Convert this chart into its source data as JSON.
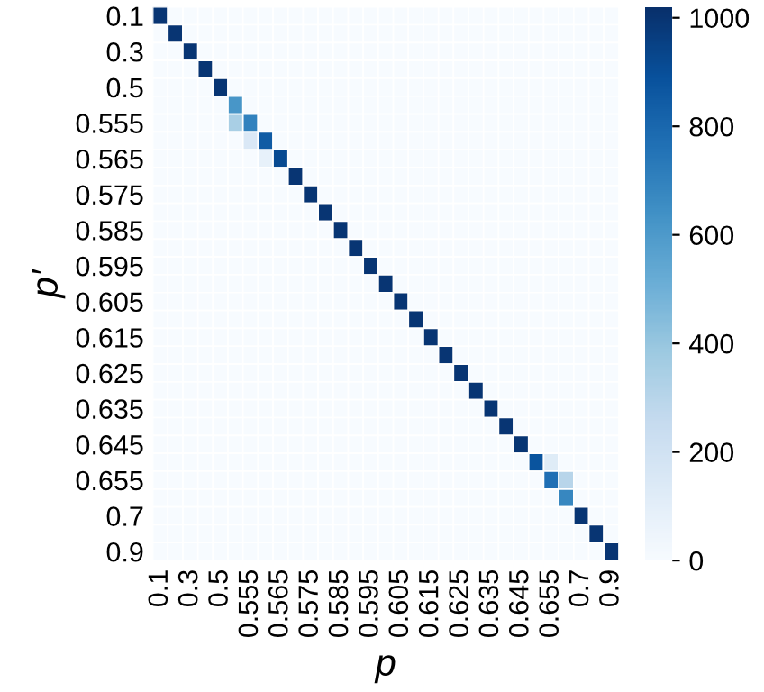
{
  "chart_data": {
    "type": "heatmap",
    "xlabel": "p",
    "ylabel": "p′",
    "categories": [
      "0.1",
      null,
      "0.3",
      null,
      "0.5",
      null,
      "0.555",
      null,
      "0.565",
      null,
      "0.575",
      null,
      "0.585",
      null,
      "0.595",
      null,
      "0.605",
      null,
      "0.615",
      null,
      "0.625",
      null,
      "0.635",
      null,
      "0.645",
      null,
      "0.655",
      null,
      "0.7",
      null,
      "0.9"
    ],
    "y_categories": [
      "0.1",
      null,
      "0.3",
      null,
      "0.5",
      null,
      "0.555",
      null,
      "0.565",
      null,
      "0.575",
      null,
      "0.585",
      null,
      "0.595",
      null,
      "0.605",
      null,
      "0.615",
      null,
      "0.625",
      null,
      "0.635",
      null,
      "0.645",
      null,
      "0.655",
      null,
      "0.7",
      null,
      "0.9"
    ],
    "cells": [
      [
        1000,
        0,
        0,
        0,
        0,
        0,
        0,
        0,
        0,
        0,
        0,
        0,
        0,
        0,
        0,
        0,
        0,
        0,
        0,
        0,
        0,
        0,
        0,
        0,
        0,
        0,
        0,
        0,
        0,
        0,
        0
      ],
      [
        0,
        1000,
        0,
        0,
        0,
        0,
        0,
        0,
        0,
        0,
        0,
        0,
        0,
        0,
        0,
        0,
        0,
        0,
        0,
        0,
        0,
        0,
        0,
        0,
        0,
        0,
        0,
        0,
        0,
        0,
        0
      ],
      [
        0,
        0,
        1000,
        0,
        0,
        0,
        0,
        0,
        0,
        0,
        0,
        0,
        0,
        0,
        0,
        0,
        0,
        0,
        0,
        0,
        0,
        0,
        0,
        0,
        0,
        0,
        0,
        0,
        0,
        0,
        0
      ],
      [
        0,
        0,
        0,
        1000,
        0,
        0,
        0,
        0,
        0,
        0,
        0,
        0,
        0,
        0,
        0,
        0,
        0,
        0,
        0,
        0,
        0,
        0,
        0,
        0,
        0,
        0,
        0,
        0,
        0,
        0,
        0
      ],
      [
        0,
        0,
        0,
        0,
        1000,
        0,
        0,
        0,
        0,
        0,
        0,
        0,
        0,
        0,
        0,
        0,
        0,
        0,
        0,
        0,
        0,
        0,
        0,
        0,
        0,
        0,
        0,
        0,
        0,
        0,
        0
      ],
      [
        0,
        0,
        0,
        0,
        0,
        620,
        0,
        0,
        0,
        0,
        0,
        0,
        0,
        0,
        0,
        0,
        0,
        0,
        0,
        0,
        0,
        0,
        0,
        0,
        0,
        0,
        0,
        0,
        0,
        0,
        0
      ],
      [
        0,
        0,
        0,
        0,
        0,
        350,
        700,
        0,
        0,
        0,
        0,
        0,
        0,
        0,
        0,
        0,
        0,
        0,
        0,
        0,
        0,
        0,
        0,
        0,
        0,
        0,
        0,
        0,
        0,
        0,
        0
      ],
      [
        0,
        0,
        0,
        0,
        0,
        0,
        150,
        850,
        0,
        0,
        0,
        0,
        0,
        0,
        0,
        0,
        0,
        0,
        0,
        0,
        0,
        0,
        0,
        0,
        0,
        0,
        0,
        0,
        0,
        0,
        0
      ],
      [
        0,
        0,
        0,
        0,
        0,
        0,
        0,
        80,
        920,
        0,
        0,
        0,
        0,
        0,
        0,
        0,
        0,
        0,
        0,
        0,
        0,
        0,
        0,
        0,
        0,
        0,
        0,
        0,
        0,
        0,
        0
      ],
      [
        0,
        0,
        0,
        0,
        0,
        0,
        0,
        0,
        0,
        1000,
        0,
        0,
        0,
        0,
        0,
        0,
        0,
        0,
        0,
        0,
        0,
        0,
        0,
        0,
        0,
        0,
        0,
        0,
        0,
        0,
        0
      ],
      [
        0,
        0,
        0,
        0,
        0,
        0,
        0,
        0,
        0,
        0,
        1000,
        0,
        0,
        0,
        0,
        0,
        0,
        0,
        0,
        0,
        0,
        0,
        0,
        0,
        0,
        0,
        0,
        0,
        0,
        0,
        0
      ],
      [
        0,
        0,
        0,
        0,
        0,
        0,
        0,
        0,
        0,
        0,
        0,
        1000,
        0,
        0,
        0,
        0,
        0,
        0,
        0,
        0,
        0,
        0,
        0,
        0,
        0,
        0,
        0,
        0,
        0,
        0,
        0
      ],
      [
        0,
        0,
        0,
        0,
        0,
        0,
        0,
        0,
        0,
        0,
        0,
        0,
        1000,
        0,
        0,
        0,
        0,
        0,
        0,
        0,
        0,
        0,
        0,
        0,
        0,
        0,
        0,
        0,
        0,
        0,
        0
      ],
      [
        0,
        0,
        0,
        0,
        0,
        0,
        0,
        0,
        0,
        0,
        0,
        0,
        0,
        1000,
        0,
        0,
        0,
        0,
        0,
        0,
        0,
        0,
        0,
        0,
        0,
        0,
        0,
        0,
        0,
        0,
        0
      ],
      [
        0,
        0,
        0,
        0,
        0,
        0,
        0,
        0,
        0,
        0,
        0,
        0,
        0,
        0,
        1000,
        0,
        0,
        0,
        0,
        0,
        0,
        0,
        0,
        0,
        0,
        0,
        0,
        0,
        0,
        0,
        0
      ],
      [
        0,
        0,
        0,
        0,
        0,
        0,
        0,
        0,
        0,
        0,
        0,
        0,
        0,
        0,
        0,
        1000,
        0,
        0,
        0,
        0,
        0,
        0,
        0,
        0,
        0,
        0,
        0,
        0,
        0,
        0,
        0
      ],
      [
        0,
        0,
        0,
        0,
        0,
        0,
        0,
        0,
        0,
        0,
        0,
        0,
        0,
        0,
        0,
        0,
        1000,
        0,
        0,
        0,
        0,
        0,
        0,
        0,
        0,
        0,
        0,
        0,
        0,
        0,
        0
      ],
      [
        0,
        0,
        0,
        0,
        0,
        0,
        0,
        0,
        0,
        0,
        0,
        0,
        0,
        0,
        0,
        0,
        0,
        1000,
        0,
        0,
        0,
        0,
        0,
        0,
        0,
        0,
        0,
        0,
        0,
        0,
        0
      ],
      [
        0,
        0,
        0,
        0,
        0,
        0,
        0,
        0,
        0,
        0,
        0,
        0,
        0,
        0,
        0,
        0,
        0,
        0,
        1000,
        0,
        0,
        0,
        0,
        0,
        0,
        0,
        0,
        0,
        0,
        0,
        0
      ],
      [
        0,
        0,
        0,
        0,
        0,
        0,
        0,
        0,
        0,
        0,
        0,
        0,
        0,
        0,
        0,
        0,
        0,
        0,
        0,
        1000,
        0,
        0,
        0,
        0,
        0,
        0,
        0,
        0,
        0,
        0,
        0
      ],
      [
        0,
        0,
        0,
        0,
        0,
        0,
        0,
        0,
        0,
        0,
        0,
        0,
        0,
        0,
        0,
        0,
        0,
        0,
        0,
        0,
        1000,
        0,
        0,
        0,
        0,
        0,
        0,
        0,
        0,
        0,
        0
      ],
      [
        0,
        0,
        0,
        0,
        0,
        0,
        0,
        0,
        0,
        0,
        0,
        0,
        0,
        0,
        0,
        0,
        0,
        0,
        0,
        0,
        0,
        1000,
        0,
        0,
        0,
        0,
        0,
        0,
        0,
        0,
        0
      ],
      [
        0,
        0,
        0,
        0,
        0,
        0,
        0,
        0,
        0,
        0,
        0,
        0,
        0,
        0,
        0,
        0,
        0,
        0,
        0,
        0,
        0,
        0,
        1000,
        0,
        0,
        0,
        0,
        0,
        0,
        0,
        0
      ],
      [
        0,
        0,
        0,
        0,
        0,
        0,
        0,
        0,
        0,
        0,
        0,
        0,
        0,
        0,
        0,
        0,
        0,
        0,
        0,
        0,
        0,
        0,
        0,
        1000,
        0,
        0,
        0,
        0,
        0,
        0,
        0
      ],
      [
        0,
        0,
        0,
        0,
        0,
        0,
        0,
        0,
        0,
        0,
        0,
        0,
        0,
        0,
        0,
        0,
        0,
        0,
        0,
        0,
        0,
        0,
        0,
        0,
        1000,
        0,
        0,
        0,
        0,
        0,
        0
      ],
      [
        0,
        0,
        0,
        0,
        0,
        0,
        0,
        0,
        0,
        0,
        0,
        0,
        0,
        0,
        0,
        0,
        0,
        0,
        0,
        0,
        0,
        0,
        0,
        0,
        0,
        880,
        120,
        0,
        0,
        0,
        0
      ],
      [
        0,
        0,
        0,
        0,
        0,
        0,
        0,
        0,
        0,
        0,
        0,
        0,
        0,
        0,
        0,
        0,
        0,
        0,
        0,
        0,
        0,
        0,
        0,
        0,
        0,
        0,
        770,
        300,
        0,
        0,
        0
      ],
      [
        0,
        0,
        0,
        0,
        0,
        0,
        0,
        0,
        0,
        0,
        0,
        0,
        0,
        0,
        0,
        0,
        0,
        0,
        0,
        0,
        0,
        0,
        0,
        0,
        0,
        0,
        0,
        680,
        0,
        0,
        0
      ],
      [
        0,
        0,
        0,
        0,
        0,
        0,
        0,
        0,
        0,
        0,
        0,
        0,
        0,
        0,
        0,
        0,
        0,
        0,
        0,
        0,
        0,
        0,
        0,
        0,
        0,
        0,
        0,
        0,
        1000,
        0,
        0
      ],
      [
        0,
        0,
        0,
        0,
        0,
        0,
        0,
        0,
        0,
        0,
        0,
        0,
        0,
        0,
        0,
        0,
        0,
        0,
        0,
        0,
        0,
        0,
        0,
        0,
        0,
        0,
        0,
        0,
        0,
        1000,
        0
      ],
      [
        0,
        0,
        0,
        0,
        0,
        0,
        0,
        0,
        0,
        0,
        0,
        0,
        0,
        0,
        0,
        0,
        0,
        0,
        0,
        0,
        0,
        0,
        0,
        0,
        0,
        0,
        0,
        0,
        0,
        0,
        1000
      ]
    ],
    "clim": [
      0,
      1020
    ],
    "cticks": [
      0,
      200,
      400,
      600,
      800,
      1000
    ]
  }
}
